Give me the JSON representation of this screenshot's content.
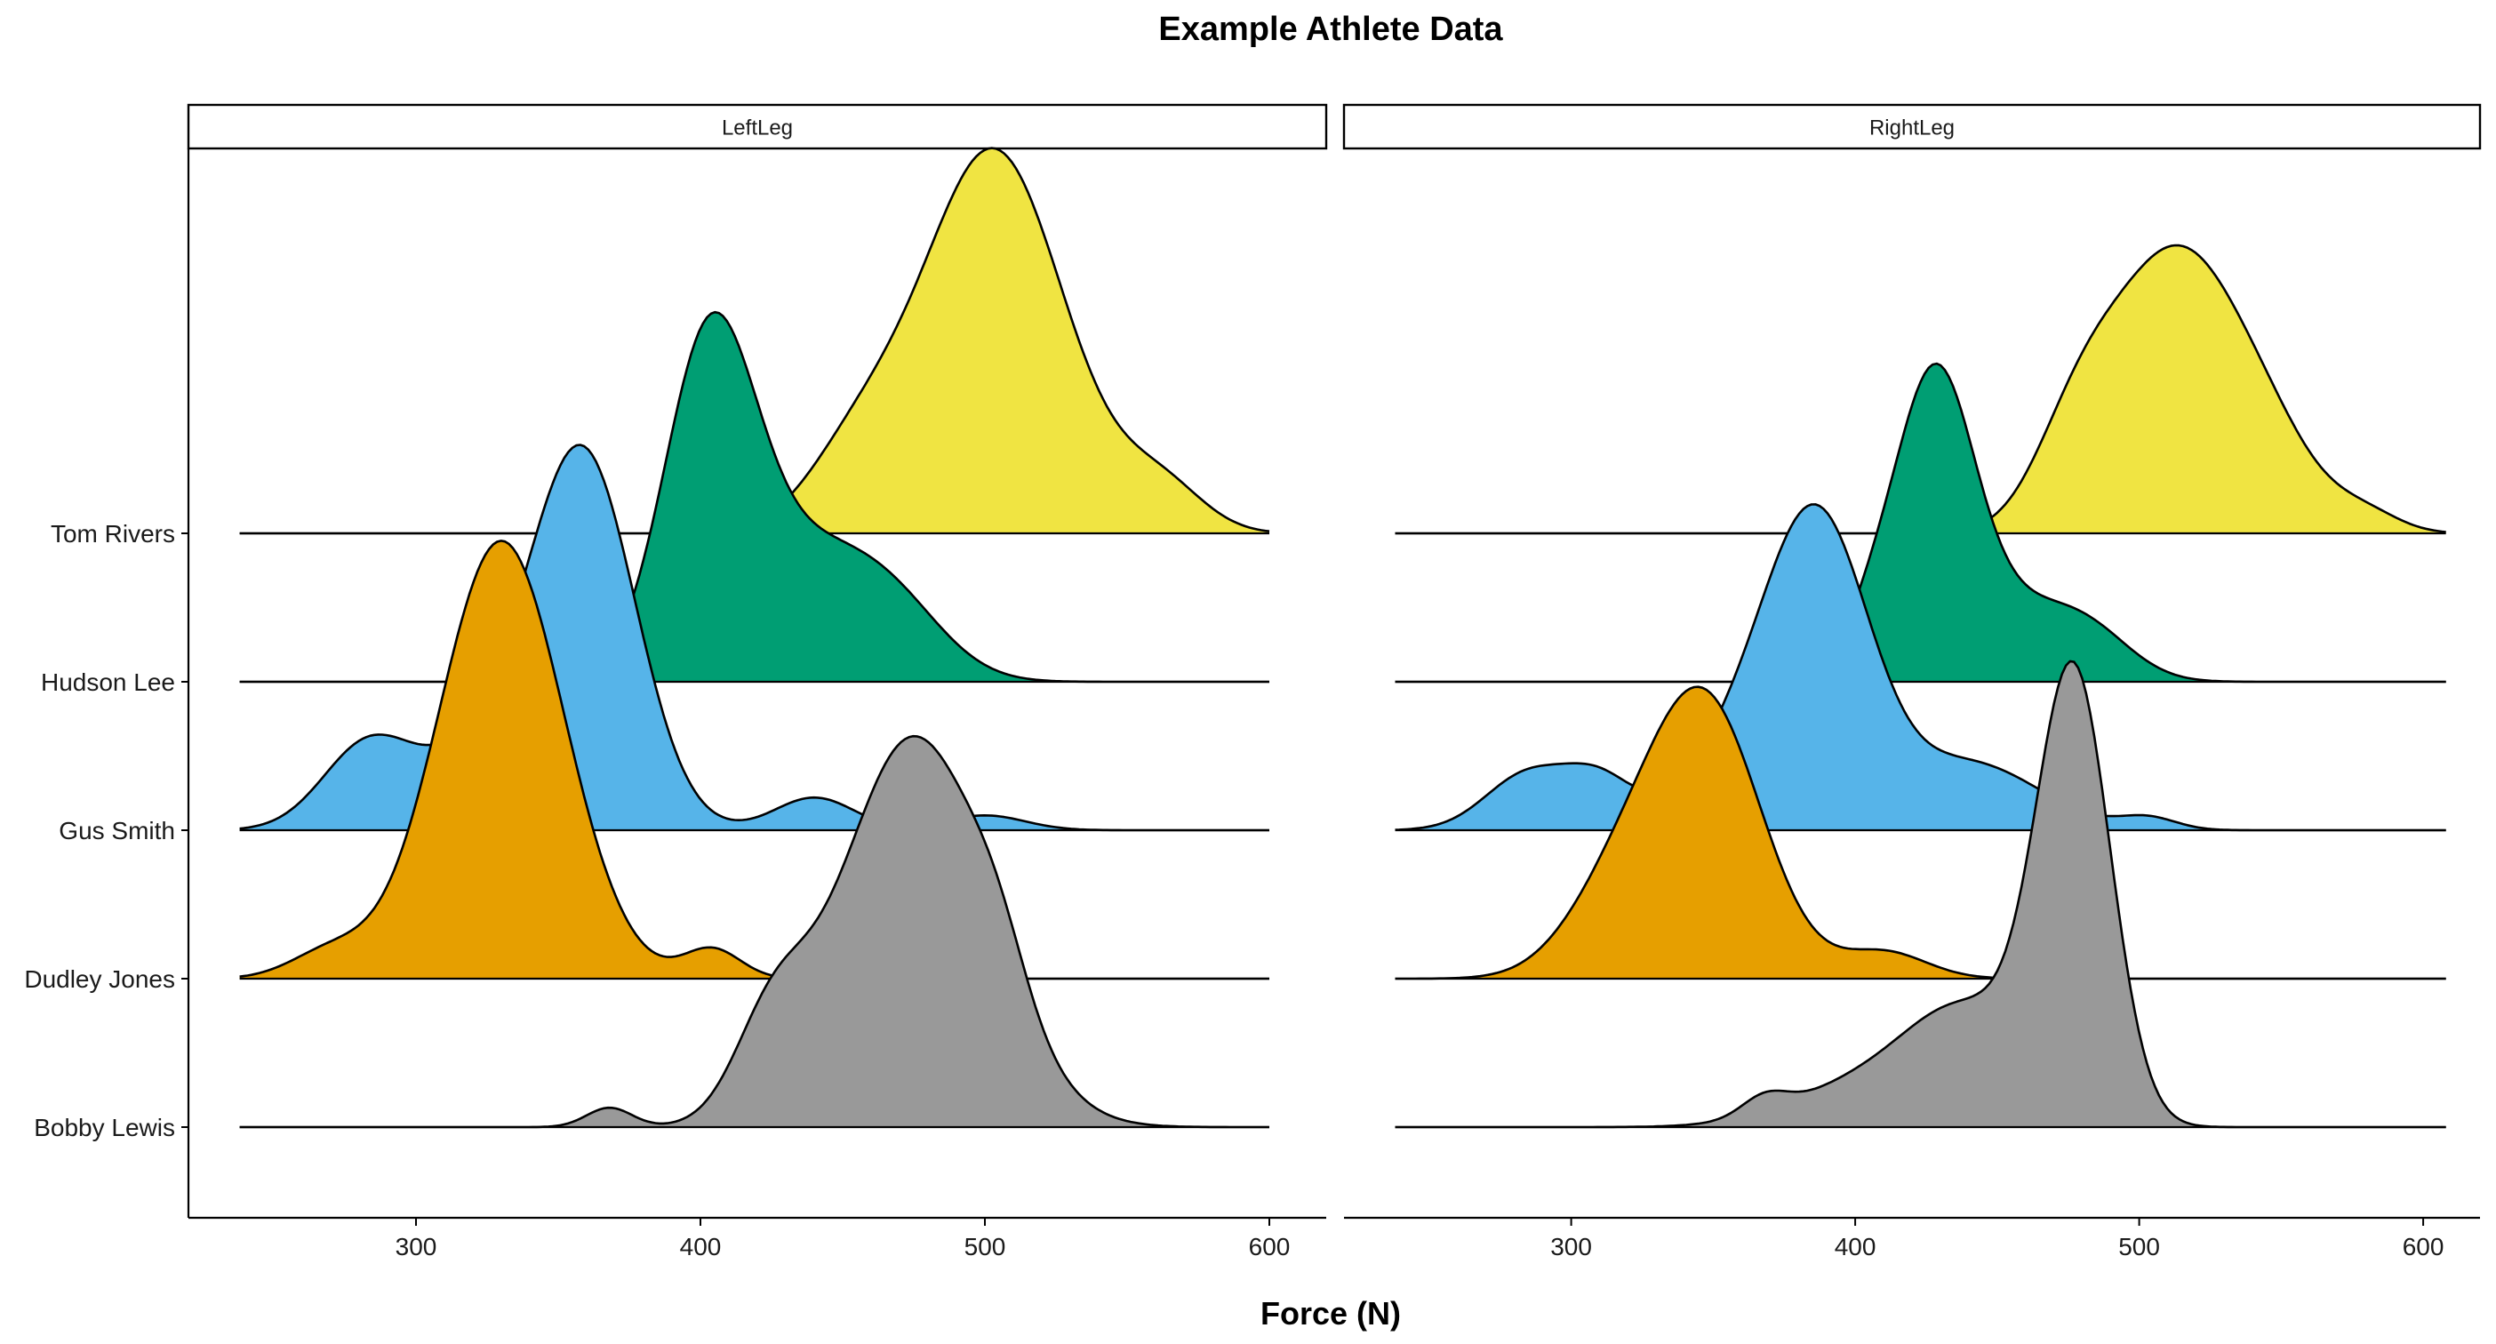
{
  "chart_data": {
    "type": "ridgeline",
    "title": "Example Athlete Data",
    "xlabel": "Force (N)",
    "ylabel": "",
    "xlim": [
      220,
      620
    ],
    "x_ticks": [
      300,
      400,
      500,
      600
    ],
    "grid": false,
    "legend": "none",
    "athletes": [
      "Tom Rivers",
      "Hudson Lee",
      "Gus Smith",
      "Dudley Jones",
      "Bobby Lewis"
    ],
    "colors": {
      "Tom Rivers": "#F0E442",
      "Hudson Lee": "#009E73",
      "Gus Smith": "#56B4E9",
      "Dudley Jones": "#E69F00",
      "Bobby Lewis": "#999999"
    },
    "panels": [
      {
        "name": "LeftLeg",
        "range": [
          238,
          600
        ],
        "series": [
          {
            "name": "Tom Rivers",
            "peaks": [
              [
                503,
                25,
                2.58
              ],
              [
                455,
                18,
                0.5
              ],
              [
                562,
                15,
                0.3
              ]
            ]
          },
          {
            "name": "Hudson Lee",
            "peaks": [
              [
                403,
                16,
                2.15
              ],
              [
                438,
                25,
                0.85
              ],
              [
                470,
                18,
                0.3
              ]
            ]
          },
          {
            "name": "Gus Smith",
            "peaks": [
              [
                360,
                18,
                2.15
              ],
              [
                283,
                16,
                0.55
              ],
              [
                335,
                25,
                0.7
              ],
              [
                440,
                14,
                0.22
              ],
              [
                500,
                14,
                0.1
              ]
            ]
          },
          {
            "name": "Dudley Jones",
            "peaks": [
              [
                330,
                22,
                2.95
              ],
              [
                404,
                10,
                0.2
              ],
              [
                270,
                14,
                0.18
              ]
            ]
          },
          {
            "name": "Bobby Lewis",
            "peaks": [
              [
                475,
                26,
                2.63
              ],
              [
                425,
                13,
                0.6
              ],
              [
                368,
                8,
                0.13
              ],
              [
                505,
                10,
                0.3
              ]
            ]
          }
        ]
      },
      {
        "name": "RightLeg",
        "range": [
          238,
          608
        ],
        "series": [
          {
            "name": "Tom Rivers",
            "peaks": [
              [
                512,
                22,
                1.8
              ],
              [
                478,
                15,
                0.6
              ],
              [
                545,
                18,
                0.5
              ],
              [
                580,
                12,
                0.12
              ]
            ]
          },
          {
            "name": "Hudson Lee",
            "peaks": [
              [
                428,
                14,
                2.05
              ],
              [
                405,
                10,
                0.3
              ],
              [
                480,
                16,
                0.38
              ],
              [
                455,
                15,
                0.35
              ]
            ]
          },
          {
            "name": "Gus Smith",
            "peaks": [
              [
                388,
                18,
                1.75
              ],
              [
                365,
                22,
                0.65
              ],
              [
                285,
                15,
                0.38
              ],
              [
                310,
                12,
                0.3
              ],
              [
                440,
                25,
                0.45
              ],
              [
                503,
                10,
                0.08
              ]
            ]
          },
          {
            "name": "Dudley Jones",
            "peaks": [
              [
                347,
                20,
                1.85
              ],
              [
                315,
                18,
                0.5
              ],
              [
                410,
                15,
                0.18
              ]
            ]
          },
          {
            "name": "Bobby Lewis",
            "peaks": [
              [
                477,
                13,
                2.95
              ],
              [
                440,
                22,
                0.75
              ],
              [
                400,
                25,
                0.25
              ],
              [
                368,
                8,
                0.12
              ]
            ]
          }
        ]
      }
    ]
  }
}
